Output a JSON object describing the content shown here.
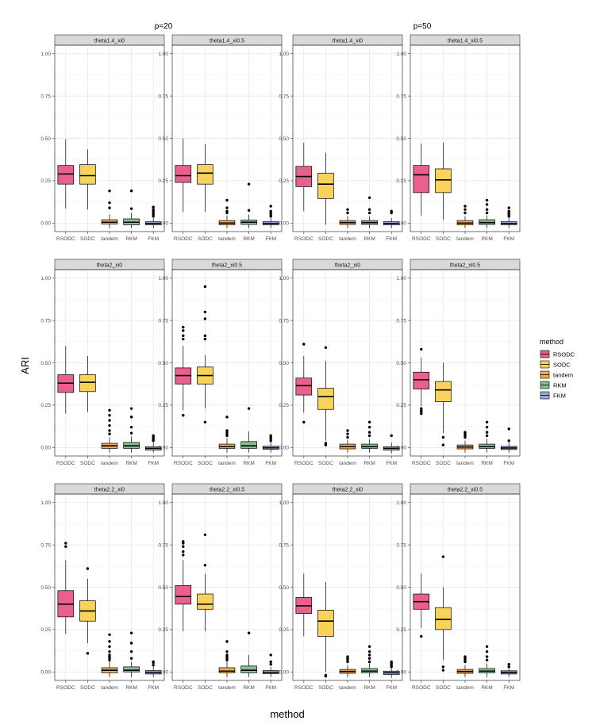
{
  "chart_data": {
    "type": "boxplot",
    "xlabel": "method",
    "ylabel": "ARI",
    "ylim": [
      -0.05,
      1.05
    ],
    "y_ticks": [
      "0.00",
      "0.25",
      "0.50",
      "0.75",
      "1.00"
    ],
    "y_tick_values": [
      0,
      0.25,
      0.5,
      0.75,
      1
    ],
    "categories": [
      "RSODC",
      "SODC",
      "tandem",
      "RKM",
      "FKM"
    ],
    "colors": {
      "RSODC": "#e8618c",
      "SODC": "#f9d25a",
      "tandem": "#f3a953",
      "RKM": "#82c08f",
      "FKM": "#95a9dd"
    },
    "grid": true,
    "legend": {
      "title": "method",
      "position": "right",
      "entries": [
        "RSODC",
        "SODC",
        "tandem",
        "RKM",
        "FKM"
      ]
    },
    "groups": [
      {
        "title": "p=20",
        "panels": [
          {
            "strip": "theta1.4_xi0",
            "boxes": [
              {
                "q1": 0.23,
                "med": 0.29,
                "q3": 0.34,
                "lo": 0.085,
                "hi": 0.495,
                "out": []
              },
              {
                "q1": 0.23,
                "med": 0.28,
                "q3": 0.345,
                "lo": 0.08,
                "hi": 0.435,
                "out": []
              },
              {
                "q1": -0.005,
                "med": 0.005,
                "q3": 0.02,
                "lo": -0.03,
                "hi": 0.05,
                "out": [
                  0.09,
                  0.12,
                  0.19
                ]
              },
              {
                "q1": -0.01,
                "med": 0.005,
                "q3": 0.025,
                "lo": -0.03,
                "hi": 0.06,
                "out": [
                  0.085,
                  0.19
                ]
              },
              {
                "q1": -0.01,
                "med": -0.002,
                "q3": 0.008,
                "lo": -0.03,
                "hi": 0.03,
                "out": [
                  0.04,
                  0.05,
                  0.06,
                  0.07,
                  0.08,
                  0.095
                ]
              }
            ]
          },
          {
            "strip": "theta1.4_xi0.5",
            "boxes": [
              {
                "q1": 0.24,
                "med": 0.28,
                "q3": 0.34,
                "lo": 0.065,
                "hi": 0.5,
                "out": []
              },
              {
                "q1": 0.23,
                "med": 0.295,
                "q3": 0.345,
                "lo": 0.065,
                "hi": 0.465,
                "out": []
              },
              {
                "q1": -0.01,
                "med": 0.0,
                "q3": 0.015,
                "lo": -0.03,
                "hi": 0.045,
                "out": [
                  0.06,
                  0.07,
                  0.09,
                  0.135
                ]
              },
              {
                "q1": -0.008,
                "med": 0.005,
                "q3": 0.018,
                "lo": -0.03,
                "hi": 0.05,
                "out": [
                  0.075,
                  0.23
                ]
              },
              {
                "q1": -0.01,
                "med": -0.002,
                "q3": 0.008,
                "lo": -0.03,
                "hi": 0.03,
                "out": [
                  0.04,
                  0.05,
                  0.06,
                  0.07,
                  0.1
                ]
              }
            ]
          },
          {
            "strip": "theta2_xi0",
            "boxes": [
              {
                "q1": 0.325,
                "med": 0.38,
                "q3": 0.43,
                "lo": 0.2,
                "hi": 0.6,
                "out": []
              },
              {
                "q1": 0.33,
                "med": 0.385,
                "q3": 0.43,
                "lo": 0.21,
                "hi": 0.54,
                "out": []
              },
              {
                "q1": -0.005,
                "med": 0.01,
                "q3": 0.025,
                "lo": -0.03,
                "hi": 0.06,
                "out": [
                  0.08,
                  0.1,
                  0.13,
                  0.16,
                  0.19,
                  0.22
                ]
              },
              {
                "q1": -0.005,
                "med": 0.01,
                "q3": 0.03,
                "lo": -0.03,
                "hi": 0.065,
                "out": [
                  0.085,
                  0.12,
                  0.18,
                  0.23
                ]
              },
              {
                "q1": -0.015,
                "med": -0.005,
                "q3": 0.005,
                "lo": -0.03,
                "hi": 0.03,
                "out": [
                  0.04,
                  0.05,
                  0.06,
                  0.07
                ]
              }
            ]
          },
          {
            "strip": "theta2_xi0.5",
            "boxes": [
              {
                "q1": 0.375,
                "med": 0.425,
                "q3": 0.47,
                "lo": 0.22,
                "hi": 0.6,
                "out": [
                  0.19,
                  0.64,
                  0.66,
                  0.69,
                  0.71
                ]
              },
              {
                "q1": 0.375,
                "med": 0.425,
                "q3": 0.475,
                "lo": 0.23,
                "hi": 0.545,
                "out": [
                  0.15,
                  0.64,
                  0.66,
                  0.76,
                  0.8,
                  0.95
                ]
              },
              {
                "q1": -0.005,
                "med": 0.005,
                "q3": 0.02,
                "lo": -0.03,
                "hi": 0.055,
                "out": [
                  0.07,
                  0.08,
                  0.09,
                  0.1,
                  0.18
                ]
              },
              {
                "q1": -0.005,
                "med": 0.01,
                "q3": 0.035,
                "lo": -0.03,
                "hi": 0.095,
                "out": [
                  0.23
                ]
              },
              {
                "q1": -0.01,
                "med": -0.002,
                "q3": 0.008,
                "lo": -0.03,
                "hi": 0.03,
                "out": [
                  0.04,
                  0.05,
                  0.06,
                  0.07
                ]
              }
            ]
          },
          {
            "strip": "theta2.2_xi0",
            "boxes": [
              {
                "q1": 0.325,
                "med": 0.4,
                "q3": 0.48,
                "lo": 0.225,
                "hi": 0.66,
                "out": [
                  0.74,
                  0.76
                ]
              },
              {
                "q1": 0.3,
                "med": 0.36,
                "q3": 0.42,
                "lo": 0.17,
                "hi": 0.55,
                "out": [
                  0.11,
                  0.61
                ]
              },
              {
                "q1": -0.005,
                "med": 0.01,
                "q3": 0.025,
                "lo": -0.03,
                "hi": 0.06,
                "out": [
                  0.07,
                  0.08,
                  0.09,
                  0.1,
                  0.12,
                  0.15,
                  0.18,
                  0.22
                ]
              },
              {
                "q1": 0.0,
                "med": 0.01,
                "q3": 0.03,
                "lo": -0.03,
                "hi": 0.06,
                "out": [
                  0.08,
                  0.12,
                  0.17,
                  0.23
                ]
              },
              {
                "q1": -0.012,
                "med": -0.002,
                "q3": 0.008,
                "lo": -0.03,
                "hi": 0.03,
                "out": [
                  0.04,
                  0.055,
                  0.06
                ]
              }
            ]
          },
          {
            "strip": "theta2.2_xi0.5",
            "boxes": [
              {
                "q1": 0.4,
                "med": 0.445,
                "q3": 0.51,
                "lo": 0.24,
                "hi": 0.66,
                "out": [
                  0.69,
                  0.71,
                  0.74,
                  0.76,
                  0.77
                ]
              },
              {
                "q1": 0.37,
                "med": 0.4,
                "q3": 0.46,
                "lo": 0.24,
                "hi": 0.58,
                "out": [
                  0.63,
                  0.81
                ]
              },
              {
                "q1": -0.005,
                "med": 0.005,
                "q3": 0.025,
                "lo": -0.03,
                "hi": 0.06,
                "out": [
                  0.07,
                  0.08,
                  0.09,
                  0.1,
                  0.12,
                  0.18
                ]
              },
              {
                "q1": -0.005,
                "med": 0.01,
                "q3": 0.035,
                "lo": -0.03,
                "hi": 0.1,
                "out": [
                  0.23
                ]
              },
              {
                "q1": -0.01,
                "med": -0.002,
                "q3": 0.008,
                "lo": -0.03,
                "hi": 0.03,
                "out": [
                  0.045,
                  0.06,
                  0.1
                ]
              }
            ]
          }
        ]
      },
      {
        "title": "p=50",
        "panels": [
          {
            "strip": "theta1.4_xi0",
            "boxes": [
              {
                "q1": 0.215,
                "med": 0.275,
                "q3": 0.335,
                "lo": 0.07,
                "hi": 0.475,
                "out": []
              },
              {
                "q1": 0.145,
                "med": 0.23,
                "q3": 0.295,
                "lo": -0.01,
                "hi": 0.415,
                "out": []
              },
              {
                "q1": -0.008,
                "med": 0.003,
                "q3": 0.015,
                "lo": -0.03,
                "hi": 0.04,
                "out": [
                  0.06,
                  0.08
                ]
              },
              {
                "q1": -0.008,
                "med": 0.003,
                "q3": 0.015,
                "lo": -0.03,
                "hi": 0.04,
                "out": [
                  0.06,
                  0.08,
                  0.15
                ]
              },
              {
                "q1": -0.01,
                "med": -0.002,
                "q3": 0.008,
                "lo": -0.03,
                "hi": 0.03,
                "out": [
                  0.06,
                  0.07
                ]
              }
            ]
          },
          {
            "strip": "theta1.4_xi0.5",
            "boxes": [
              {
                "q1": 0.18,
                "med": 0.285,
                "q3": 0.34,
                "lo": 0.045,
                "hi": 0.47,
                "out": []
              },
              {
                "q1": 0.18,
                "med": 0.255,
                "q3": 0.32,
                "lo": 0.02,
                "hi": 0.475,
                "out": []
              },
              {
                "q1": -0.01,
                "med": 0.0,
                "q3": 0.015,
                "lo": -0.03,
                "hi": 0.04,
                "out": [
                  0.06,
                  0.08,
                  0.1
                ]
              },
              {
                "q1": -0.008,
                "med": 0.003,
                "q3": 0.02,
                "lo": -0.03,
                "hi": 0.045,
                "out": [
                  0.06,
                  0.08,
                  0.11,
                  0.135
                ]
              },
              {
                "q1": -0.01,
                "med": -0.002,
                "q3": 0.008,
                "lo": -0.03,
                "hi": 0.03,
                "out": [
                  0.04,
                  0.05,
                  0.06,
                  0.07,
                  0.09
                ]
              }
            ]
          },
          {
            "strip": "theta2_xi0",
            "boxes": [
              {
                "q1": 0.31,
                "med": 0.365,
                "q3": 0.41,
                "lo": 0.205,
                "hi": 0.54,
                "out": [
                  0.15,
                  0.61
                ]
              },
              {
                "q1": 0.225,
                "med": 0.3,
                "q3": 0.35,
                "lo": 0.04,
                "hi": 0.51,
                "out": [
                  0.015,
                  0.025,
                  0.59
                ]
              },
              {
                "q1": -0.008,
                "med": 0.005,
                "q3": 0.02,
                "lo": -0.03,
                "hi": 0.045,
                "out": [
                  0.06,
                  0.08,
                  0.1
                ]
              },
              {
                "q1": -0.005,
                "med": 0.005,
                "q3": 0.02,
                "lo": -0.03,
                "hi": 0.05,
                "out": [
                  0.07,
                  0.09,
                  0.12,
                  0.15
                ]
              },
              {
                "q1": -0.015,
                "med": -0.005,
                "q3": 0.005,
                "lo": -0.035,
                "hi": 0.03,
                "out": [
                  0.07
                ]
              }
            ]
          },
          {
            "strip": "theta2_xi0.5",
            "boxes": [
              {
                "q1": 0.345,
                "med": 0.4,
                "q3": 0.445,
                "lo": 0.245,
                "hi": 0.53,
                "out": [
                  0.2,
                  0.21,
                  0.22,
                  0.23,
                  0.58
                ]
              },
              {
                "q1": 0.27,
                "med": 0.34,
                "q3": 0.39,
                "lo": 0.085,
                "hi": 0.5,
                "out": [
                  0.015,
                  0.06
                ]
              },
              {
                "q1": -0.008,
                "med": 0.003,
                "q3": 0.015,
                "lo": -0.03,
                "hi": 0.04,
                "out": [
                  0.06,
                  0.07,
                  0.08,
                  0.09
                ]
              },
              {
                "q1": -0.005,
                "med": 0.005,
                "q3": 0.02,
                "lo": -0.03,
                "hi": 0.05,
                "out": [
                  0.07,
                  0.09,
                  0.12,
                  0.15
                ]
              },
              {
                "q1": -0.012,
                "med": -0.003,
                "q3": 0.007,
                "lo": -0.03,
                "hi": 0.03,
                "out": [
                  0.04,
                  0.11
                ]
              }
            ]
          },
          {
            "strip": "theta2.2_xi0",
            "boxes": [
              {
                "q1": 0.345,
                "med": 0.39,
                "q3": 0.44,
                "lo": 0.21,
                "hi": 0.58,
                "out": []
              },
              {
                "q1": 0.21,
                "med": 0.3,
                "q3": 0.365,
                "lo": 0.0,
                "hi": 0.53,
                "out": [
                  -0.02,
                  -0.025
                ]
              },
              {
                "q1": -0.008,
                "med": 0.003,
                "q3": 0.015,
                "lo": -0.03,
                "hi": 0.04,
                "out": [
                  0.06,
                  0.07,
                  0.08,
                  0.09
                ]
              },
              {
                "q1": -0.005,
                "med": 0.005,
                "q3": 0.02,
                "lo": -0.03,
                "hi": 0.05,
                "out": [
                  0.06,
                  0.08,
                  0.1,
                  0.12,
                  0.15
                ]
              },
              {
                "q1": -0.015,
                "med": -0.005,
                "q3": 0.005,
                "lo": -0.035,
                "hi": 0.02,
                "out": [
                  0.03,
                  0.04,
                  0.05,
                  0.06
                ]
              }
            ]
          },
          {
            "strip": "theta2.2_xi0.5",
            "boxes": [
              {
                "q1": 0.37,
                "med": 0.415,
                "q3": 0.46,
                "lo": 0.26,
                "hi": 0.58,
                "out": [
                  0.21
                ]
              },
              {
                "q1": 0.25,
                "med": 0.31,
                "q3": 0.38,
                "lo": 0.07,
                "hi": 0.5,
                "out": [
                  0.01,
                  0.03,
                  0.68
                ]
              },
              {
                "q1": -0.008,
                "med": 0.003,
                "q3": 0.015,
                "lo": -0.03,
                "hi": 0.04,
                "out": [
                  0.06,
                  0.07,
                  0.08,
                  0.09
                ]
              },
              {
                "q1": -0.005,
                "med": 0.005,
                "q3": 0.02,
                "lo": -0.03,
                "hi": 0.05,
                "out": [
                  0.07,
                  0.09,
                  0.12,
                  0.15
                ]
              },
              {
                "q1": -0.012,
                "med": -0.003,
                "q3": 0.007,
                "lo": -0.03,
                "hi": 0.02,
                "out": [
                  0.03,
                  0.045
                ]
              }
            ]
          }
        ]
      }
    ]
  }
}
